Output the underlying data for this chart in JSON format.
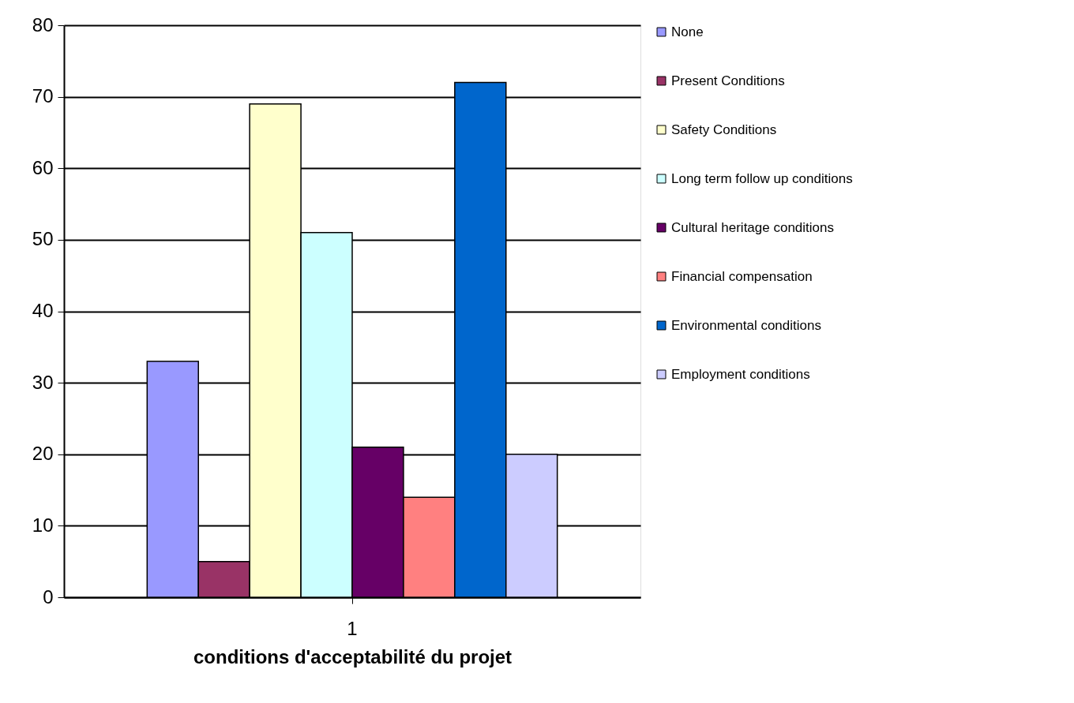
{
  "chart_data": {
    "type": "bar",
    "xlabel": "conditions d'acceptabilité du projet",
    "categories": [
      "1"
    ],
    "series": [
      {
        "name": "None",
        "color": "#9999ff",
        "values": [
          33
        ]
      },
      {
        "name": "Present Conditions",
        "color": "#993366",
        "values": [
          5
        ]
      },
      {
        "name": "Safety Conditions",
        "color": "#ffffcc",
        "values": [
          69
        ]
      },
      {
        "name": "Long term follow up conditions",
        "color": "#ccffff",
        "values": [
          51
        ]
      },
      {
        "name": "Cultural heritage conditions",
        "color": "#660066",
        "values": [
          21
        ]
      },
      {
        "name": "Financial compensation",
        "color": "#ff8080",
        "values": [
          14
        ]
      },
      {
        "name": "Environmental conditions",
        "color": "#0066cc",
        "values": [
          72
        ]
      },
      {
        "name": "Employment conditions",
        "color": "#ccccff",
        "values": [
          20
        ]
      }
    ],
    "ylim": [
      0,
      80
    ],
    "yticks": [
      0,
      10,
      20,
      30,
      40,
      50,
      60,
      70,
      80
    ],
    "grid": "y",
    "legend": "right"
  }
}
